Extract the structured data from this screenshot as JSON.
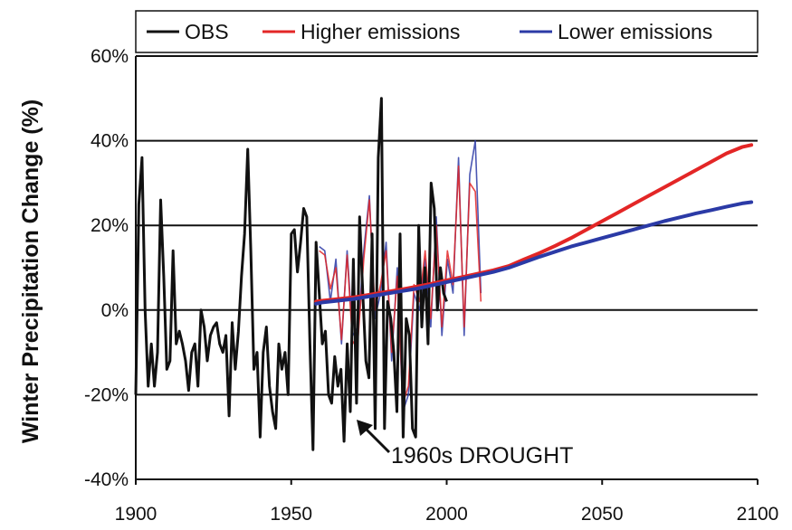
{
  "chart_data": {
    "type": "line",
    "title": "",
    "xlabel": "",
    "ylabel": "Winter Precipitation Change (%)",
    "xlim": [
      1900,
      2100
    ],
    "ylim": [
      -40,
      60
    ],
    "x_ticks": [
      "1900",
      "1950",
      "2000",
      "2050",
      "2100"
    ],
    "y_ticks": [
      "-40%",
      "-20%",
      "0%",
      "20%",
      "40%",
      "60%"
    ],
    "grid": "horizontal",
    "legend_position": "top",
    "annotation": {
      "text": "1960s DROUGHT",
      "x": 1970,
      "y": -26
    },
    "series": [
      {
        "name": "OBS",
        "color": "#111111",
        "x": [
          1900,
          1901,
          1902,
          1903,
          1904,
          1905,
          1906,
          1907,
          1908,
          1909,
          1910,
          1911,
          1912,
          1913,
          1914,
          1915,
          1916,
          1917,
          1918,
          1919,
          1920,
          1921,
          1922,
          1923,
          1924,
          1925,
          1926,
          1927,
          1928,
          1929,
          1930,
          1931,
          1932,
          1933,
          1934,
          1935,
          1936,
          1937,
          1938,
          1939,
          1940,
          1941,
          1942,
          1943,
          1944,
          1945,
          1946,
          1947,
          1948,
          1949,
          1950,
          1951,
          1952,
          1953,
          1954,
          1955,
          1956,
          1957,
          1958,
          1959,
          1960,
          1961,
          1962,
          1963,
          1964,
          1965,
          1966,
          1967,
          1968,
          1969,
          1970,
          1971,
          1972,
          1973,
          1974,
          1975,
          1976,
          1977,
          1978,
          1979,
          1980,
          1981,
          1982,
          1983,
          1984,
          1985,
          1986,
          1987,
          1988,
          1989,
          1990,
          1991,
          1992,
          1993,
          1994,
          1995,
          1996,
          1997,
          1998,
          1999,
          2000
        ],
        "y": [
          -20,
          25,
          36,
          0,
          -18,
          -8,
          -18,
          -10,
          26,
          8,
          -14,
          -12,
          14,
          -8,
          -5,
          -8,
          -12,
          -19,
          -10,
          -8,
          -18,
          0,
          -4,
          -12,
          -6,
          -4,
          -3,
          -8,
          -10,
          -6,
          -25,
          -3,
          -14,
          -5,
          8,
          18,
          38,
          14,
          -14,
          -10,
          -30,
          -10,
          -4,
          -18,
          -24,
          -28,
          -8,
          -14,
          -10,
          -20,
          18,
          19,
          9,
          16,
          24,
          22,
          -8,
          -33,
          16,
          4,
          -8,
          -5,
          -20,
          -22,
          -11,
          -18,
          -14,
          -31,
          -8,
          -24,
          12,
          -22,
          22,
          4,
          -12,
          -16,
          18,
          -28,
          36,
          50,
          -28,
          2,
          -2,
          -10,
          -24,
          18,
          -30,
          -2,
          -6,
          -28,
          -30,
          20,
          -4,
          10,
          -8,
          30,
          24,
          0,
          10,
          4,
          2
        ]
      },
      {
        "name": "Higher emissions",
        "color": "#e32626",
        "x": [
          1958,
          1960,
          1965,
          1970,
          1975,
          1980,
          1985,
          1990,
          1995,
          2000,
          2005,
          2010,
          2015,
          2020,
          2025,
          2030,
          2035,
          2040,
          2045,
          2050,
          2055,
          2060,
          2065,
          2070,
          2075,
          2080,
          2085,
          2090,
          2095,
          2098
        ],
        "y": [
          2,
          2.2,
          2.6,
          3,
          3.6,
          4.2,
          4.8,
          5.5,
          6.2,
          7,
          7.8,
          8.6,
          9.4,
          10.4,
          12,
          13.5,
          15.2,
          17,
          19,
          21,
          23,
          25,
          27,
          29,
          31,
          33,
          35,
          37,
          38.5,
          39
        ],
        "spaghetti": [
          14,
          13,
          5,
          10,
          -7,
          13,
          -8,
          -6,
          12,
          26,
          0,
          6,
          14,
          -10,
          8,
          -22,
          -18,
          6,
          2,
          14,
          -2,
          20,
          -4,
          14,
          6,
          34,
          -4,
          30,
          28,
          2
        ]
      },
      {
        "name": "Lower emissions",
        "color": "#2b3aa6",
        "x": [
          1958,
          1960,
          1965,
          1970,
          1975,
          1980,
          1985,
          1990,
          1995,
          2000,
          2005,
          2010,
          2015,
          2020,
          2025,
          2030,
          2035,
          2040,
          2045,
          2050,
          2055,
          2060,
          2065,
          2070,
          2075,
          2080,
          2085,
          2090,
          2095,
          2098
        ],
        "y": [
          1.5,
          1.8,
          2.2,
          2.6,
          3.2,
          3.8,
          4.4,
          5,
          5.8,
          6.6,
          7.4,
          8.2,
          9,
          10,
          11.3,
          12.6,
          13.8,
          15,
          16,
          17,
          18,
          19,
          20,
          21,
          21.9,
          22.8,
          23.6,
          24.4,
          25.2,
          25.5
        ],
        "spaghetti": [
          15,
          14,
          2,
          12,
          -8,
          14,
          -6,
          -4,
          14,
          27,
          -2,
          4,
          16,
          -12,
          10,
          -24,
          -20,
          4,
          0,
          12,
          -4,
          22,
          -6,
          12,
          4,
          36,
          -6,
          32,
          40,
          4
        ]
      }
    ]
  }
}
